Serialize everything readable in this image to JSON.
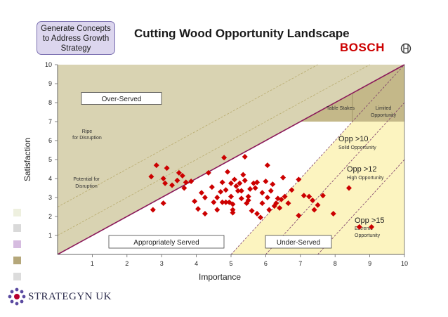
{
  "header": {
    "badge_text": "Generate Concepts to Address Growth Strategy",
    "title": "Cutting Wood Opportunity Landscape",
    "brand": "BOSCH"
  },
  "footer": {
    "logo_text": "STRATEGYN UK",
    "legend_colors": [
      "#eef0df",
      "#d9d9d9",
      "#d6bce0",
      "#b5a77a",
      "#dcdcdc"
    ]
  },
  "chart_data": {
    "type": "scatter",
    "xlabel": "Importance",
    "ylabel": "Satisfaction",
    "xlim": [
      0,
      10
    ],
    "ylim": [
      0,
      10
    ],
    "x_ticks": [
      1,
      2,
      3,
      4,
      5,
      6,
      7,
      8,
      9,
      10
    ],
    "y_ticks": [
      1,
      2,
      3,
      4,
      5,
      6,
      7,
      8,
      9,
      10
    ],
    "regions": [
      {
        "label": "Over-Served",
        "color": "#d9d3b2"
      },
      {
        "label": "Appropriately Served",
        "color": "#ffffff"
      },
      {
        "label": "Under-Served",
        "color": "#fcf4c0"
      },
      {
        "label": "Table Stakes",
        "color": "#c4b889"
      },
      {
        "label": "Limited Opportunity",
        "color": "#c4b889"
      }
    ],
    "annotations": [
      {
        "text": "Ripe for Disruption"
      },
      {
        "text": "Potential for Disruption"
      },
      {
        "text": "Opp >10",
        "sub": "Solid Opportunity"
      },
      {
        "text": "Opp >12",
        "sub": "High Opportunity"
      },
      {
        "text": "Opp >15",
        "sub": "Extreme Opportunity"
      }
    ],
    "marker_color": "#cc0000",
    "points": [
      [
        2.7,
        4.1
      ],
      [
        2.85,
        4.7
      ],
      [
        3.05,
        4.0
      ],
      [
        3.15,
        4.55
      ],
      [
        3.1,
        3.75
      ],
      [
        2.75,
        2.35
      ],
      [
        3.05,
        2.7
      ],
      [
        3.3,
        3.65
      ],
      [
        3.45,
        3.9
      ],
      [
        3.5,
        4.3
      ],
      [
        3.6,
        4.15
      ],
      [
        3.7,
        3.8
      ],
      [
        3.85,
        3.85
      ],
      [
        3.65,
        3.5
      ],
      [
        3.95,
        2.8
      ],
      [
        4.05,
        2.4
      ],
      [
        4.15,
        3.25
      ],
      [
        4.25,
        3.0
      ],
      [
        4.25,
        2.15
      ],
      [
        4.35,
        4.3
      ],
      [
        4.45,
        3.55
      ],
      [
        4.5,
        2.75
      ],
      [
        4.6,
        3.0
      ],
      [
        4.6,
        2.35
      ],
      [
        4.7,
        3.3
      ],
      [
        4.75,
        2.75
      ],
      [
        4.8,
        5.1
      ],
      [
        4.75,
        3.8
      ],
      [
        4.85,
        3.4
      ],
      [
        4.85,
        2.75
      ],
      [
        4.9,
        4.35
      ],
      [
        4.95,
        2.75
      ],
      [
        5.0,
        3.75
      ],
      [
        5.0,
        3.05
      ],
      [
        5.05,
        2.65
      ],
      [
        5.05,
        2.35
      ],
      [
        5.05,
        2.2
      ],
      [
        5.1,
        3.95
      ],
      [
        5.15,
        3.6
      ],
      [
        5.2,
        3.35
      ],
      [
        5.25,
        3.75
      ],
      [
        5.3,
        2.95
      ],
      [
        5.3,
        3.35
      ],
      [
        5.35,
        4.2
      ],
      [
        5.4,
        5.15
      ],
      [
        5.4,
        3.9
      ],
      [
        5.45,
        2.7
      ],
      [
        5.5,
        3.05
      ],
      [
        5.5,
        2.85
      ],
      [
        5.55,
        3.45
      ],
      [
        5.6,
        2.3
      ],
      [
        5.65,
        3.75
      ],
      [
        5.7,
        3.5
      ],
      [
        5.75,
        3.8
      ],
      [
        5.75,
        2.15
      ],
      [
        5.85,
        1.95
      ],
      [
        5.9,
        3.25
      ],
      [
        5.9,
        2.7
      ],
      [
        6.0,
        3.85
      ],
      [
        6.05,
        4.7
      ],
      [
        6.05,
        3.0
      ],
      [
        6.1,
        2.35
      ],
      [
        6.15,
        3.35
      ],
      [
        6.2,
        3.7
      ],
      [
        6.25,
        2.55
      ],
      [
        6.3,
        2.7
      ],
      [
        6.35,
        2.95
      ],
      [
        6.4,
        2.45
      ],
      [
        6.45,
        2.9
      ],
      [
        6.5,
        4.05
      ],
      [
        6.55,
        3.05
      ],
      [
        6.65,
        2.7
      ],
      [
        6.75,
        3.4
      ],
      [
        6.95,
        3.95
      ],
      [
        6.95,
        2.05
      ],
      [
        7.1,
        3.1
      ],
      [
        7.25,
        3.05
      ],
      [
        7.35,
        2.85
      ],
      [
        7.4,
        2.35
      ],
      [
        7.5,
        2.6
      ],
      [
        7.65,
        3.1
      ],
      [
        7.95,
        2.15
      ],
      [
        8.4,
        3.5
      ],
      [
        8.7,
        1.45
      ],
      [
        9.05,
        1.45
      ]
    ]
  }
}
